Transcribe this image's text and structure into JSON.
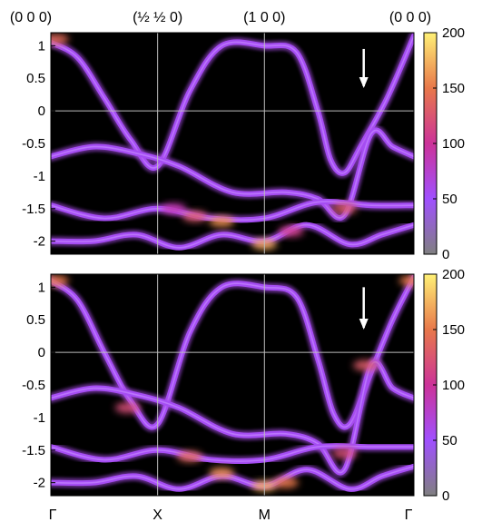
{
  "chart_data": [
    {
      "type": "heatmap",
      "panel": "top",
      "colormap": [
        "#808080",
        "#a050ff",
        "#cc3399",
        "#e8784a",
        "#fff176"
      ],
      "background": "#000000",
      "ylim": [
        -2.2,
        1.2
      ],
      "yticks": [
        "1",
        "0.5",
        "0",
        "-0.5",
        "-1",
        "-1.5",
        "-2"
      ],
      "ytick_values": [
        1,
        0.5,
        0,
        -0.5,
        -1,
        -1.5,
        -2
      ],
      "k_points": [
        "(0 0 0)",
        "(½ ½ 0)",
        "(1 0 0)",
        "(0 0 0)"
      ],
      "k_positions": [
        0,
        1,
        2,
        3.4
      ],
      "colorbar": {
        "range": [
          0,
          200
        ],
        "ticks": [
          "200",
          "150",
          "100",
          "50",
          "0"
        ],
        "tick_values": [
          200,
          150,
          100,
          50,
          0
        ]
      },
      "arrow": {
        "x": 2.93,
        "y_from": 0.95,
        "y_to": 0.35
      },
      "bands": [
        {
          "x": [
            0,
            0.25,
            0.5,
            0.75,
            1.0,
            1.3,
            1.6,
            2.0,
            2.3,
            2.5,
            2.62,
            2.75,
            2.9,
            3.15,
            3.4
          ],
          "y": [
            1.05,
            0.82,
            0.2,
            -0.45,
            -0.85,
            0.3,
            1.0,
            1.0,
            0.9,
            0.0,
            -0.75,
            -0.95,
            -0.55,
            0.2,
            1.15
          ]
        },
        {
          "x": [
            0,
            0.4,
            0.8,
            1.2,
            1.7,
            2.2,
            2.5,
            2.75,
            3.0,
            3.2,
            3.4
          ],
          "y": [
            -0.7,
            -0.55,
            -0.65,
            -0.85,
            -1.25,
            -1.25,
            -1.35,
            -1.6,
            -0.35,
            -0.55,
            -0.7
          ]
        },
        {
          "x": [
            0,
            0.5,
            1.0,
            1.5,
            2.0,
            2.5,
            3.0,
            3.4
          ],
          "y": [
            -1.45,
            -1.65,
            -1.5,
            -1.65,
            -1.65,
            -1.4,
            -1.45,
            -1.45
          ]
        },
        {
          "x": [
            0,
            0.4,
            0.8,
            1.2,
            1.6,
            2.0,
            2.4,
            2.8,
            3.1,
            3.4
          ],
          "y": [
            -2.0,
            -2.0,
            -1.9,
            -2.1,
            -1.9,
            -2.0,
            -1.75,
            -2.05,
            -1.9,
            -1.75
          ]
        }
      ],
      "hotspots": [
        {
          "x": 0.05,
          "y": 1.1,
          "intensity": 140
        },
        {
          "x": 1.15,
          "y": -1.5,
          "intensity": 90
        },
        {
          "x": 1.35,
          "y": -1.62,
          "intensity": 130
        },
        {
          "x": 1.6,
          "y": -1.7,
          "intensity": 160
        },
        {
          "x": 2.0,
          "y": -2.05,
          "intensity": 170
        },
        {
          "x": 2.25,
          "y": -1.85,
          "intensity": 110
        },
        {
          "x": 2.75,
          "y": -1.5,
          "intensity": 130
        }
      ]
    },
    {
      "type": "heatmap",
      "panel": "bottom",
      "colormap": [
        "#808080",
        "#a050ff",
        "#cc3399",
        "#e8784a",
        "#fff176"
      ],
      "background": "#000000",
      "ylim": [
        -2.2,
        1.2
      ],
      "yticks": [
        "1",
        "0.5",
        "0",
        "-0.5",
        "-1",
        "-1.5",
        "-2"
      ],
      "ytick_values": [
        1,
        0.5,
        0,
        -0.5,
        -1,
        -1.5,
        -2
      ],
      "k_points": [
        "Γ",
        "X",
        "M",
        "Γ"
      ],
      "k_positions": [
        0,
        1,
        2,
        3.4
      ],
      "colorbar": {
        "range": [
          0,
          200
        ],
        "ticks": [
          "200",
          "150",
          "100",
          "50",
          "0"
        ],
        "tick_values": [
          200,
          150,
          100,
          50,
          0
        ]
      },
      "arrow": {
        "x": 2.93,
        "y_from": 1.0,
        "y_to": 0.35
      },
      "bands": [
        {
          "x": [
            0,
            0.25,
            0.5,
            0.75,
            1.0,
            1.3,
            1.6,
            2.0,
            2.3,
            2.5,
            2.65,
            2.8,
            3.0,
            3.2,
            3.4
          ],
          "y": [
            1.1,
            0.8,
            0.0,
            -0.75,
            -1.1,
            0.3,
            1.0,
            1.0,
            0.85,
            -0.1,
            -0.95,
            -1.1,
            -0.3,
            0.5,
            1.15
          ]
        },
        {
          "x": [
            0,
            0.4,
            0.8,
            1.2,
            1.7,
            2.2,
            2.5,
            2.75,
            3.0,
            3.2,
            3.4
          ],
          "y": [
            -0.7,
            -0.55,
            -0.65,
            -0.85,
            -1.25,
            -1.25,
            -1.4,
            -1.8,
            -0.2,
            -0.55,
            -0.7
          ]
        },
        {
          "x": [
            0,
            0.5,
            1.0,
            1.5,
            2.0,
            2.5,
            3.0,
            3.4
          ],
          "y": [
            -1.45,
            -1.65,
            -1.5,
            -1.65,
            -1.65,
            -1.45,
            -1.45,
            -1.45
          ]
        },
        {
          "x": [
            0,
            0.4,
            0.8,
            1.2,
            1.6,
            2.0,
            2.4,
            2.8,
            3.1,
            3.4
          ],
          "y": [
            -2.0,
            -2.0,
            -1.9,
            -2.1,
            -1.9,
            -2.05,
            -1.8,
            -2.1,
            -1.9,
            -1.75
          ]
        }
      ],
      "hotspots": [
        {
          "x": 0.05,
          "y": 1.1,
          "intensity": 150
        },
        {
          "x": 0.72,
          "y": -0.85,
          "intensity": 120
        },
        {
          "x": 1.3,
          "y": -1.6,
          "intensity": 140
        },
        {
          "x": 1.6,
          "y": -1.85,
          "intensity": 160
        },
        {
          "x": 2.0,
          "y": -2.05,
          "intensity": 170
        },
        {
          "x": 2.2,
          "y": -2.0,
          "intensity": 150
        },
        {
          "x": 2.75,
          "y": -1.55,
          "intensity": 120
        },
        {
          "x": 2.95,
          "y": -0.2,
          "intensity": 130
        },
        {
          "x": 3.38,
          "y": 1.1,
          "intensity": 150
        }
      ]
    }
  ]
}
